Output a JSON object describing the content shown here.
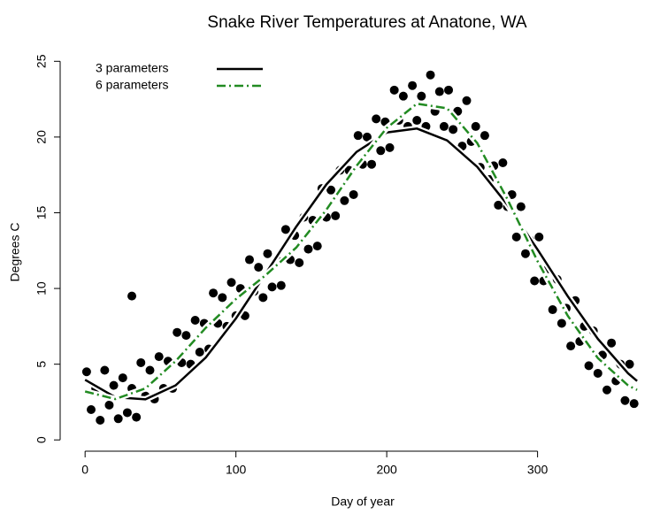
{
  "chart_data": {
    "type": "scatter",
    "title": "Snake River Temperatures at Anatone, WA",
    "x_label": "Day of year",
    "y_label": "Degrees C",
    "point_color": "#000000",
    "x": [
      1,
      4,
      7,
      10,
      13,
      16,
      19,
      22,
      25,
      28,
      31,
      34,
      37,
      40,
      43,
      46,
      49,
      52,
      55,
      58,
      61,
      64,
      67,
      70,
      73,
      76,
      79,
      82,
      85,
      88,
      91,
      94,
      97,
      100,
      103,
      106,
      109,
      112,
      115,
      118,
      121,
      124,
      127,
      130,
      133,
      136,
      139,
      142,
      145,
      148,
      151,
      154,
      157,
      160,
      163,
      166,
      169,
      172,
      175,
      178,
      181,
      184,
      187,
      190,
      193,
      196,
      199,
      202,
      205,
      208,
      211,
      214,
      217,
      220,
      223,
      226,
      229,
      232,
      235,
      238,
      241,
      244,
      247,
      250,
      253,
      256,
      259,
      262,
      265,
      268,
      271,
      274,
      277,
      280,
      283,
      286,
      289,
      292,
      295,
      298,
      301,
      304,
      307,
      310,
      313,
      316,
      319,
      322,
      325,
      328,
      331,
      334,
      337,
      340,
      343,
      346,
      349,
      352,
      355,
      358,
      361,
      364,
      31
    ],
    "values": [
      4.5,
      2.0,
      3.4,
      1.3,
      4.6,
      2.3,
      3.6,
      1.4,
      4.1,
      1.8,
      3.4,
      1.5,
      5.1,
      2.9,
      4.6,
      2.7,
      5.5,
      3.4,
      5.2,
      3.4,
      7.1,
      5.1,
      6.9,
      5.0,
      7.9,
      5.8,
      7.7,
      6.0,
      9.7,
      7.7,
      9.4,
      7.5,
      10.4,
      8.2,
      10.0,
      8.2,
      11.9,
      9.8,
      11.4,
      9.4,
      12.3,
      10.1,
      11.9,
      10.2,
      13.9,
      11.9,
      13.5,
      11.7,
      14.7,
      12.6,
      14.5,
      12.8,
      16.6,
      14.7,
      16.5,
      14.8,
      17.8,
      15.8,
      17.8,
      16.2,
      20.1,
      18.2,
      20.0,
      18.2,
      21.2,
      19.1,
      21.0,
      19.3,
      23.1,
      21.1,
      22.7,
      20.7,
      23.4,
      21.1,
      22.7,
      20.7,
      24.1,
      21.7,
      23.0,
      20.7,
      23.1,
      20.5,
      21.7,
      19.4,
      22.4,
      19.7,
      20.7,
      18.0,
      20.1,
      17.2,
      18.1,
      15.5,
      18.3,
      15.4,
      16.2,
      13.4,
      15.4,
      12.3,
      13.2,
      10.5,
      13.4,
      10.5,
      11.3,
      8.6,
      10.6,
      7.7,
      8.7,
      6.2,
      9.2,
      6.5,
      7.5,
      4.9,
      7.2,
      4.4,
      5.6,
      3.3,
      6.4,
      3.9,
      5.0,
      2.6,
      5.0,
      2.4,
      9.5
    ],
    "lines": [
      {
        "name": "3 parameters",
        "color": "#000000",
        "style": "solid",
        "x": [
          0,
          20,
          40,
          60,
          80,
          100,
          120,
          140,
          160,
          180,
          200,
          220,
          240,
          260,
          280,
          300,
          320,
          340,
          360,
          366
        ],
        "values": [
          3.97,
          2.82,
          2.68,
          3.6,
          5.44,
          8.02,
          11.02,
          14.08,
          16.87,
          19.02,
          20.3,
          20.56,
          19.78,
          18.03,
          15.53,
          12.57,
          9.49,
          6.67,
          4.4,
          3.89
        ]
      },
      {
        "name": "6 parameters",
        "color": "#228b22",
        "style": "dashdot",
        "x": [
          0,
          20,
          40,
          60,
          80,
          100,
          120,
          140,
          160,
          180,
          200,
          220,
          240,
          260,
          280,
          300,
          320,
          340,
          360,
          366
        ],
        "values": [
          3.2,
          2.7,
          3.4,
          5.2,
          7.4,
          9.3,
          10.9,
          12.7,
          15.2,
          18.1,
          20.6,
          22.2,
          21.9,
          19.6,
          15.9,
          11.8,
          8.2,
          5.4,
          3.6,
          3.3
        ]
      }
    ],
    "legend_position": "top-left",
    "xlim": [
      -13.6,
      380.6
    ],
    "xticks": [
      0,
      100,
      200,
      300
    ],
    "ylim": [
      -0.16,
      25.66
    ],
    "yticks": [
      0,
      5,
      10,
      15,
      20,
      25
    ]
  }
}
